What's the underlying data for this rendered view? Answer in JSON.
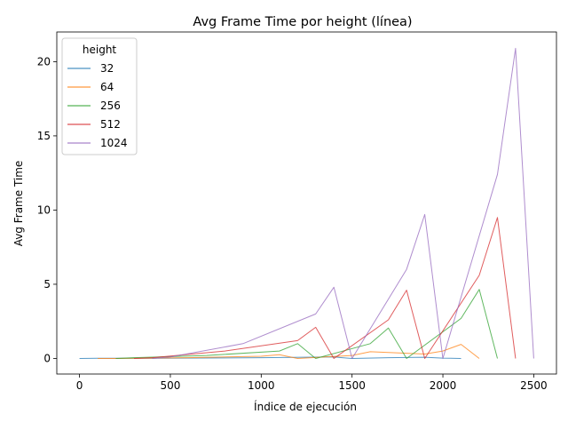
{
  "chart_data": {
    "type": "line",
    "title": "Avg Frame Time por height (línea)",
    "xlabel": "Índice de ejecución",
    "ylabel": "Avg Frame Time",
    "xlim": [
      -125,
      2625
    ],
    "ylim": [
      -1.05,
      22.0
    ],
    "xticks": [
      0,
      500,
      1000,
      1500,
      2000,
      2500
    ],
    "yticks": [
      0,
      5,
      10,
      15,
      20
    ],
    "legend": {
      "title": "height",
      "position": "top-left"
    },
    "series": [
      {
        "name": "32",
        "color": "#1f77b4",
        "x": [
          0,
          100,
          400,
          1000,
          1400,
          1500,
          1700,
          1900,
          2000,
          2100
        ],
        "y": [
          0.0,
          0.01,
          0.01,
          0.05,
          0.1,
          0.0,
          0.05,
          0.08,
          0.02,
          0.0
        ]
      },
      {
        "name": "64",
        "color": "#ff7f0e",
        "x": [
          100,
          200,
          600,
          1000,
          1100,
          1200,
          1500,
          1600,
          1900,
          2000,
          2100,
          2200
        ],
        "y": [
          0.0,
          0.0,
          0.05,
          0.15,
          0.25,
          0.0,
          0.2,
          0.45,
          0.3,
          0.5,
          0.95,
          0.0
        ]
      },
      {
        "name": "256",
        "color": "#2ca02c",
        "x": [
          200,
          300,
          700,
          1100,
          1200,
          1300,
          1600,
          1700,
          1800,
          2100,
          2200,
          2300
        ],
        "y": [
          0.0,
          0.05,
          0.2,
          0.5,
          1.0,
          0.0,
          1.0,
          2.05,
          0.0,
          2.7,
          4.65,
          0.0
        ]
      },
      {
        "name": "512",
        "color": "#d62728",
        "x": [
          300,
          400,
          800,
          1200,
          1300,
          1400,
          1700,
          1800,
          1900,
          2200,
          2300,
          2400
        ],
        "y": [
          0.0,
          0.05,
          0.5,
          1.2,
          2.1,
          0.0,
          2.6,
          4.6,
          0.0,
          5.6,
          9.5,
          0.0
        ]
      },
      {
        "name": "1024",
        "color": "#9467bd",
        "x": [
          400,
          500,
          900,
          1300,
          1400,
          1500,
          1800,
          1900,
          2000,
          2300,
          2400,
          2500
        ],
        "y": [
          0.0,
          0.1,
          1.0,
          3.0,
          4.8,
          0.0,
          6.0,
          9.7,
          0.0,
          12.4,
          20.9,
          0.0
        ]
      }
    ]
  }
}
